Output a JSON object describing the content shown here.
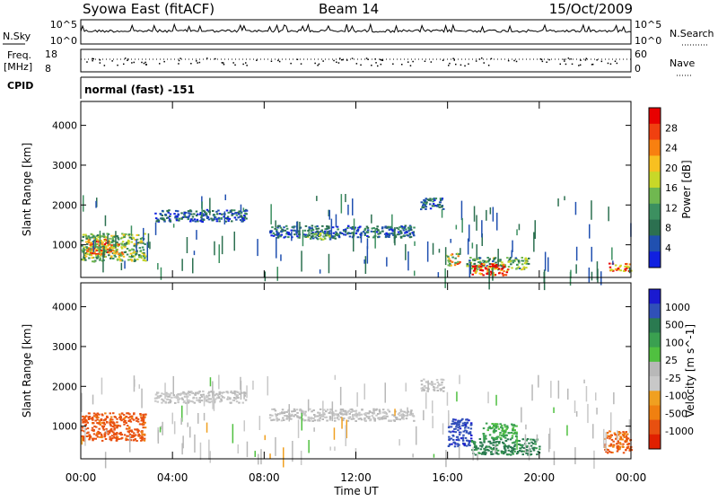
{
  "header": {
    "station": "Syowa East (fitACF)",
    "beam": "Beam 14",
    "date": "15/Oct/2009"
  },
  "strip": {
    "nsky_label": "N.Sky",
    "nsky_top": "10^5",
    "nsky_bottom": "10^0",
    "nsearch_label": "N.Search",
    "nsearch_top": "10^5",
    "nsearch_bottom": "10^0",
    "freq_label_1": "Freq.",
    "freq_label_2": "[MHz]",
    "freq_top": "18",
    "freq_bottom": "8",
    "nave_label": "Nave",
    "nave_top": "60",
    "nave_bottom": "0",
    "cpid_label": "CPID",
    "cpid_text": "normal (fast) -151"
  },
  "chart_data": [
    {
      "type": "heatmap",
      "name": "Power",
      "ylabel": "Slant Range [km]",
      "xlabel": "Time UT",
      "x_ticks": [
        "00:00",
        "04:00",
        "08:00",
        "12:00",
        "16:00",
        "20:00",
        "00:00"
      ],
      "y_ticks": [
        1000,
        2000,
        3000,
        4000
      ],
      "ylim": [
        180,
        4600
      ],
      "xlim_hours": [
        0,
        24
      ],
      "colorbar": {
        "label": "Power [dB]",
        "ticks": [
          "28",
          "24",
          "20",
          "16",
          "12",
          "8",
          "4"
        ],
        "range": [
          0,
          30
        ]
      },
      "bands": [
        {
          "t0": 0.0,
          "t1": 2.8,
          "r0": 600,
          "r1": 1300,
          "value": 13
        },
        {
          "t0": 0.2,
          "t1": 1.8,
          "r0": 750,
          "r1": 1050,
          "value": 20
        },
        {
          "t0": 0.3,
          "t1": 1.2,
          "r0": 1000,
          "r1": 1150,
          "value": 24
        },
        {
          "t0": 3.2,
          "t1": 7.2,
          "r0": 1600,
          "r1": 1900,
          "value": 5
        },
        {
          "t0": 8.2,
          "t1": 14.5,
          "r0": 1200,
          "r1": 1500,
          "value": 6
        },
        {
          "t0": 9.8,
          "t1": 11.2,
          "r0": 1150,
          "r1": 1350,
          "value": 11
        },
        {
          "t0": 14.8,
          "t1": 15.8,
          "r0": 1900,
          "r1": 2200,
          "value": 7
        },
        {
          "t0": 15.9,
          "t1": 16.5,
          "r0": 500,
          "r1": 800,
          "value": 18
        },
        {
          "t0": 16.8,
          "t1": 19.5,
          "r0": 400,
          "r1": 700,
          "value": 12
        },
        {
          "t0": 17.0,
          "t1": 18.6,
          "r0": 250,
          "r1": 550,
          "value": 28
        },
        {
          "t0": 23.0,
          "t1": 24.0,
          "r0": 350,
          "r1": 550,
          "value": 25
        }
      ]
    },
    {
      "type": "heatmap",
      "name": "Velocity",
      "ylabel": "Slant Range [km]",
      "xlabel": "Time UT",
      "x_ticks": [
        "00:00",
        "04:00",
        "08:00",
        "12:00",
        "16:00",
        "20:00",
        "00:00"
      ],
      "y_ticks": [
        1000,
        2000,
        3000,
        4000
      ],
      "ylim": [
        180,
        4600
      ],
      "xlim_hours": [
        0,
        24
      ],
      "colorbar": {
        "label": "Velocity [m s^-1]",
        "ticks": [
          "1000",
          "500",
          "100",
          "25",
          "-25",
          "-100",
          "-500",
          "-1000"
        ],
        "range": [
          -1200,
          1200
        ]
      },
      "bands": [
        {
          "t0": 0.0,
          "t1": 2.8,
          "r0": 650,
          "r1": 1350,
          "value": -400
        },
        {
          "t0": 3.2,
          "t1": 7.2,
          "r0": 1600,
          "r1": 1900,
          "value": 0
        },
        {
          "t0": 8.2,
          "t1": 14.5,
          "r0": 1150,
          "r1": 1450,
          "value": 0
        },
        {
          "t0": 14.8,
          "t1": 15.8,
          "r0": 1900,
          "r1": 2200,
          "value": 0
        },
        {
          "t0": 16.0,
          "t1": 17.0,
          "r0": 500,
          "r1": 1200,
          "value": 600
        },
        {
          "t0": 17.0,
          "t1": 20.0,
          "r0": 300,
          "r1": 700,
          "value": 120
        },
        {
          "t0": 17.5,
          "t1": 19.0,
          "r0": 700,
          "r1": 1100,
          "value": 60
        },
        {
          "t0": 22.8,
          "t1": 24.0,
          "r0": 350,
          "r1": 900,
          "value": -300
        }
      ]
    }
  ]
}
